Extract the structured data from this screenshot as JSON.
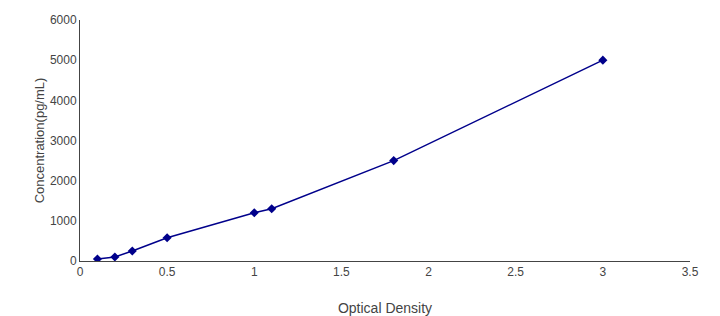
{
  "chart_data": {
    "type": "line",
    "x": [
      0.1,
      0.2,
      0.3,
      0.5,
      1.0,
      1.1,
      1.8,
      3.0
    ],
    "values": [
      50,
      100,
      250,
      580,
      1200,
      1300,
      2500,
      5000
    ],
    "color": "#00008B",
    "marker": "diamond",
    "line_style": "solid",
    "xlabel": "Optical Density",
    "ylabel": "Concentration(pg/mL)",
    "xlim": [
      0,
      3.5
    ],
    "ylim": [
      0,
      6000
    ],
    "xticks": [
      0,
      0.5,
      1,
      1.5,
      2,
      2.5,
      3,
      3.5
    ],
    "yticks": [
      0,
      1000,
      2000,
      3000,
      4000,
      5000,
      6000
    ],
    "grid": false
  }
}
